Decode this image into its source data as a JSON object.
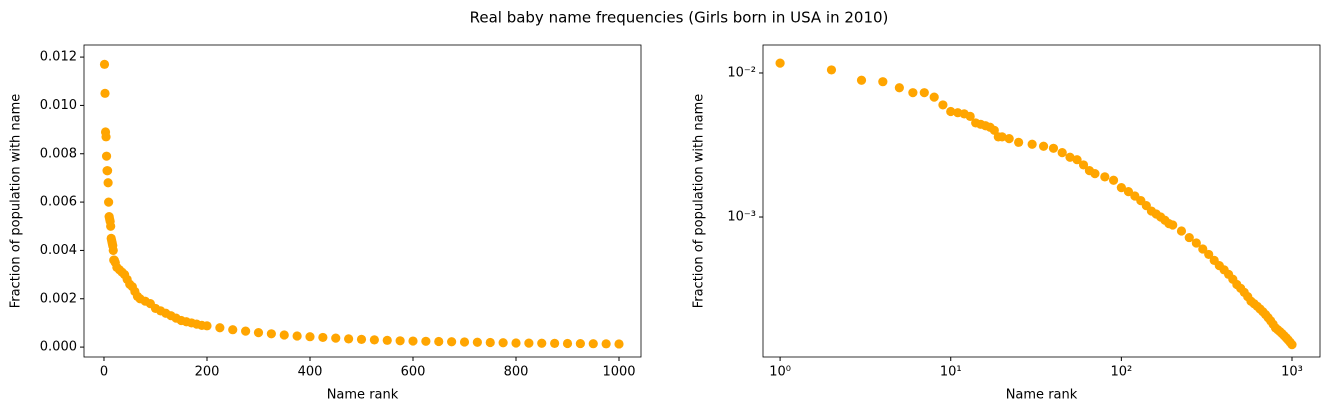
{
  "title": "Real baby name frequencies (Girls born in USA in 2010)",
  "chart_data": [
    {
      "type": "scatter",
      "xlabel": "Name rank",
      "ylabel": "Fraction of population with name",
      "color": "#ffa500",
      "xlog": false,
      "ylog": false,
      "x": [
        1,
        2,
        3,
        4,
        5,
        6,
        7,
        8,
        9,
        10,
        11,
        12,
        13,
        14,
        15,
        16,
        17,
        18,
        19,
        20,
        22,
        25,
        30,
        35,
        40,
        45,
        50,
        55,
        60,
        65,
        70,
        80,
        90,
        100,
        110,
        120,
        130,
        140,
        150,
        160,
        170,
        180,
        190,
        200,
        225,
        250,
        275,
        300,
        325,
        350,
        375,
        400,
        425,
        450,
        475,
        500,
        525,
        550,
        575,
        600,
        625,
        650,
        675,
        700,
        725,
        750,
        775,
        800,
        825,
        850,
        875,
        900,
        925,
        950,
        975,
        1000
      ],
      "values": [
        0.0117,
        0.0105,
        0.0089,
        0.0087,
        0.0079,
        0.0073,
        0.0073,
        0.0068,
        0.006,
        0.0054,
        0.0053,
        0.0052,
        0.005,
        0.0045,
        0.0044,
        0.0043,
        0.0042,
        0.004,
        0.0036,
        0.0036,
        0.0035,
        0.0033,
        0.0032,
        0.0031,
        0.003,
        0.0028,
        0.0026,
        0.0025,
        0.0023,
        0.0021,
        0.002,
        0.0019,
        0.0018,
        0.0016,
        0.0015,
        0.0014,
        0.0013,
        0.0012,
        0.0011,
        0.00105,
        0.001,
        0.00095,
        0.0009,
        0.00088,
        0.0008,
        0.00072,
        0.00066,
        0.0006,
        0.00055,
        0.0005,
        0.00046,
        0.00043,
        0.0004,
        0.00037,
        0.00034,
        0.00032,
        0.0003,
        0.00028,
        0.00026,
        0.00025,
        0.00024,
        0.00023,
        0.00022,
        0.00021,
        0.0002,
        0.00019,
        0.00018,
        0.00017,
        0.000165,
        0.00016,
        0.000155,
        0.00015,
        0.000145,
        0.00014,
        0.000135,
        0.00013
      ],
      "xlim": [
        -38.8,
        1042.7
      ],
      "ylim": [
        -0.00041,
        0.0125
      ],
      "xticks": [
        0,
        200,
        400,
        600,
        800,
        1000
      ],
      "yticks": [
        {
          "value": 0,
          "label": "0.000"
        },
        {
          "value": 0.002,
          "label": "0.002"
        },
        {
          "value": 0.004,
          "label": "0.004"
        },
        {
          "value": 0.006,
          "label": "0.006"
        },
        {
          "value": 0.008,
          "label": "0.008"
        },
        {
          "value": 0.01,
          "label": "0.010"
        },
        {
          "value": 0.012,
          "label": "0.012"
        }
      ]
    },
    {
      "type": "scatter",
      "xlabel": "Name rank",
      "ylabel": "Fraction of population with name",
      "color": "#ffa500",
      "xlog": true,
      "ylog": true,
      "x": [
        1,
        2,
        3,
        4,
        5,
        6,
        7,
        8,
        9,
        10,
        11,
        12,
        13,
        14,
        15,
        16,
        17,
        18,
        19,
        20,
        22,
        25,
        30,
        35,
        40,
        45,
        50,
        55,
        60,
        65,
        70,
        80,
        90,
        100,
        110,
        120,
        130,
        140,
        150,
        160,
        170,
        180,
        190,
        200,
        225,
        250,
        275,
        300,
        325,
        350,
        375,
        400,
        425,
        450,
        475,
        500,
        525,
        550,
        575,
        600,
        625,
        650,
        675,
        700,
        725,
        750,
        775,
        800,
        825,
        850,
        875,
        900,
        925,
        950,
        975,
        1000
      ],
      "values": [
        0.0117,
        0.0105,
        0.0089,
        0.0087,
        0.0079,
        0.0073,
        0.0073,
        0.0068,
        0.006,
        0.0054,
        0.0053,
        0.0052,
        0.005,
        0.0045,
        0.0044,
        0.0043,
        0.0042,
        0.004,
        0.0036,
        0.0036,
        0.0035,
        0.0033,
        0.0032,
        0.0031,
        0.003,
        0.0028,
        0.0026,
        0.0025,
        0.0023,
        0.0021,
        0.002,
        0.0019,
        0.0018,
        0.0016,
        0.0015,
        0.0014,
        0.0013,
        0.0012,
        0.0011,
        0.00105,
        0.001,
        0.00095,
        0.0009,
        0.00088,
        0.0008,
        0.00072,
        0.00066,
        0.0006,
        0.00055,
        0.0005,
        0.00046,
        0.00043,
        0.0004,
        0.00037,
        0.00034,
        0.00032,
        0.0003,
        0.00028,
        0.00026,
        0.00025,
        0.00024,
        0.00023,
        0.00022,
        0.00021,
        0.0002,
        0.00019,
        0.00018,
        0.00017,
        0.000165,
        0.00016,
        0.000155,
        0.00015,
        0.000145,
        0.00014,
        0.000135,
        0.00013
      ],
      "xlim": [
        0.794,
        1459
      ],
      "ylim": [
        0.0001067,
        0.01564
      ],
      "xticks": [
        {
          "value": 1,
          "label": "10⁰"
        },
        {
          "value": 10,
          "label": "10¹"
        },
        {
          "value": 100,
          "label": "10²"
        },
        {
          "value": 1000,
          "label": "10³"
        }
      ],
      "yticks": [
        {
          "value": 0.001,
          "label": "10⁻³"
        },
        {
          "value": 0.01,
          "label": "10⁻²"
        }
      ]
    }
  ]
}
